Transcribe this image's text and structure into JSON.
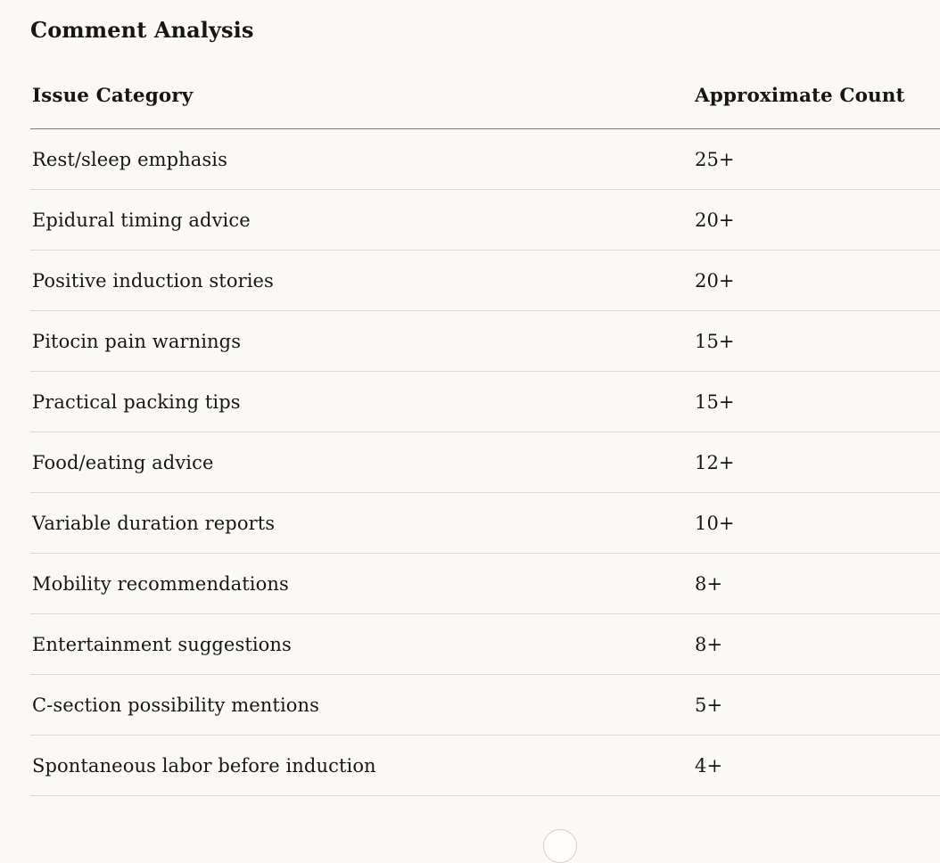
{
  "page": {
    "colors": {
      "background": "#FAF9F5",
      "text": "#171613",
      "header_rule": "#7E7C74",
      "row_divider": "#DAD7CF",
      "scroll_button_border": "#D2D0C7",
      "scroll_button_fill": "#FFFEFB"
    }
  },
  "title": "Comment Analysis",
  "table": {
    "columns": [
      "Issue Category",
      "Approximate Count"
    ],
    "rows": [
      {
        "category": "Rest/sleep emphasis",
        "count": "25+"
      },
      {
        "category": "Epidural timing advice",
        "count": "20+"
      },
      {
        "category": "Positive induction stories",
        "count": "20+"
      },
      {
        "category": "Pitocin pain warnings",
        "count": "15+"
      },
      {
        "category": "Practical packing tips",
        "count": "15+"
      },
      {
        "category": "Food/eating advice",
        "count": "12+"
      },
      {
        "category": "Variable duration reports",
        "count": "10+"
      },
      {
        "category": "Mobility recommendations",
        "count": "8+"
      },
      {
        "category": "Entertainment suggestions",
        "count": "8+"
      },
      {
        "category": "C-section possibility mentions",
        "count": "5+"
      },
      {
        "category": "Spontaneous labor before induction",
        "count": "4+"
      }
    ]
  }
}
